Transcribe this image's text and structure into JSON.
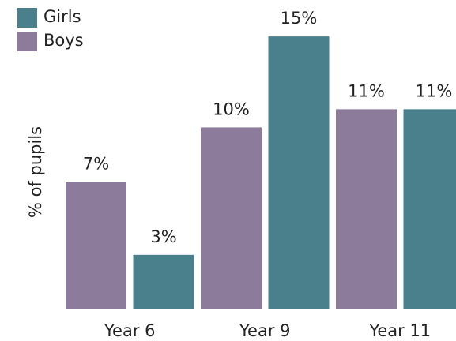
{
  "chart_data": {
    "type": "bar",
    "y_label": "% of pupils",
    "categories": [
      "Year 6",
      "Year 9",
      "Year 11"
    ],
    "series": [
      {
        "name": "Girls",
        "color": "#4a7f8c",
        "values": [
          3,
          15,
          11
        ],
        "value_labels": [
          "3%",
          "15%",
          "11%"
        ]
      },
      {
        "name": "Boys",
        "color": "#8c7b9b",
        "values": [
          7,
          10,
          11
        ],
        "value_labels": [
          "7%",
          "10%",
          "11%"
        ]
      }
    ],
    "ylim": [
      0,
      17
    ]
  }
}
